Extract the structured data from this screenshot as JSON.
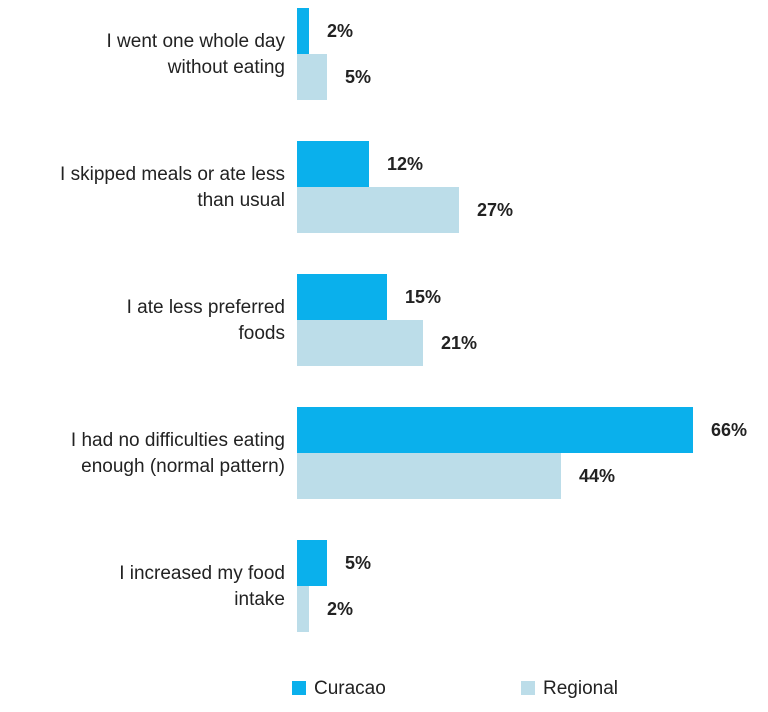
{
  "chart_data": {
    "type": "bar",
    "orientation": "horizontal",
    "categories": [
      [
        "I went one whole day",
        "without eating"
      ],
      [
        "I skipped meals or ate less",
        "than usual"
      ],
      [
        "I ate less preferred",
        "foods"
      ],
      [
        "I had no difficulties eating",
        "enough (normal pattern)"
      ],
      [
        "I increased my food",
        "intake"
      ]
    ],
    "series": [
      {
        "name": "Curacao",
        "color": "#0ab0ec",
        "values": [
          2,
          12,
          15,
          66,
          5
        ],
        "labels": [
          "2%",
          "12%",
          "15%",
          "66%",
          "5%"
        ]
      },
      {
        "name": "Regional",
        "color": "#bcdde9",
        "values": [
          5,
          27,
          21,
          44,
          2
        ],
        "labels": [
          "5%",
          "27%",
          "21%",
          "44%",
          "2%"
        ]
      }
    ],
    "xlim": [
      0,
      66
    ],
    "grid": false,
    "legend_position": "bottom"
  }
}
